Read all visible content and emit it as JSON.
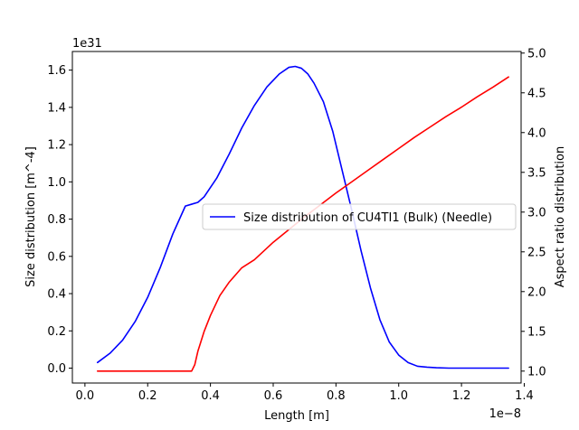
{
  "chart_data": {
    "type": "line",
    "x_offset_label": "1e−8",
    "y_offset_label": "1e31",
    "xlabel": "Length [m]",
    "ylabel": "Size distribution [m^-4]",
    "y2label": "Aspect ratio distribution",
    "xlim": [
      -0.04,
      1.39
    ],
    "ylim": [
      -0.08,
      1.7
    ],
    "y2lim": [
      0.85,
      5.02
    ],
    "xticks": [
      "0.0",
      "0.2",
      "0.4",
      "0.6",
      "0.8",
      "1.0",
      "1.2",
      "1.4"
    ],
    "yticks": [
      "0.0",
      "0.2",
      "0.4",
      "0.6",
      "0.8",
      "1.0",
      "1.2",
      "1.4",
      "1.6"
    ],
    "y2ticks": [
      "1.0",
      "1.5",
      "2.0",
      "2.5",
      "3.0",
      "3.5",
      "4.0",
      "4.5",
      "5.0"
    ],
    "legend_position": "center-right",
    "series": [
      {
        "name": "Size distribution of CU4TI1 (Bulk) (Needle)",
        "color": "#0000ff",
        "axis": "left",
        "x": [
          0.04,
          0.08,
          0.12,
          0.16,
          0.2,
          0.24,
          0.28,
          0.32,
          0.34,
          0.36,
          0.38,
          0.42,
          0.46,
          0.5,
          0.54,
          0.58,
          0.62,
          0.65,
          0.67,
          0.69,
          0.71,
          0.73,
          0.76,
          0.79,
          0.82,
          0.85,
          0.88,
          0.91,
          0.94,
          0.97,
          1.0,
          1.03,
          1.06,
          1.09,
          1.12,
          1.16,
          1.2,
          1.25,
          1.3,
          1.35
        ],
        "y": [
          0.03,
          0.08,
          0.15,
          0.25,
          0.38,
          0.54,
          0.72,
          0.87,
          0.88,
          0.89,
          0.92,
          1.02,
          1.15,
          1.29,
          1.41,
          1.51,
          1.58,
          1.615,
          1.62,
          1.61,
          1.58,
          1.53,
          1.43,
          1.27,
          1.06,
          0.85,
          0.63,
          0.43,
          0.26,
          0.14,
          0.07,
          0.03,
          0.01,
          0.005,
          0.002,
          0.0,
          0.0,
          0.0,
          0.0,
          0.0
        ]
      },
      {
        "name": "",
        "color": "#ff0000",
        "axis": "right",
        "x": [
          0.04,
          0.1,
          0.2,
          0.3,
          0.34,
          0.35,
          0.36,
          0.38,
          0.4,
          0.43,
          0.46,
          0.5,
          0.54,
          0.6,
          0.65,
          0.7,
          0.75,
          0.8,
          0.85,
          0.9,
          0.95,
          1.0,
          1.05,
          1.1,
          1.15,
          1.2,
          1.25,
          1.3,
          1.35
        ],
        "y": [
          1.0,
          1.0,
          1.0,
          1.0,
          1.0,
          1.08,
          1.25,
          1.5,
          1.7,
          1.95,
          2.12,
          2.3,
          2.4,
          2.62,
          2.78,
          2.94,
          3.09,
          3.24,
          3.38,
          3.52,
          3.66,
          3.8,
          3.94,
          4.07,
          4.2,
          4.32,
          4.45,
          4.57,
          4.7
        ]
      }
    ]
  }
}
